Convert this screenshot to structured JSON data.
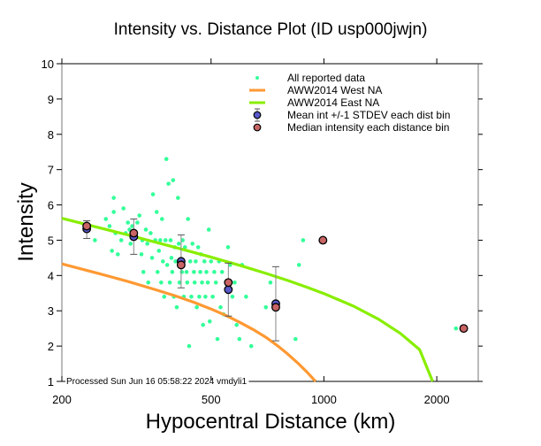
{
  "chart_data": {
    "type": "scatter",
    "title": "Intensity vs. Distance Plot (ID usp000jwjn)",
    "xlabel": "Hypocentral Distance (km)",
    "ylabel": "Intensity",
    "xscale": "log",
    "xlim": [
      200,
      2580
    ],
    "ylim": [
      1,
      10
    ],
    "xticks": [
      200,
      500,
      1000,
      2000
    ],
    "xtick_labels": [
      "200",
      "500",
      "1000",
      "2000"
    ],
    "yticks": [
      1,
      2,
      3,
      4,
      5,
      6,
      7,
      8,
      9,
      10
    ],
    "ytick_labels": [
      "1",
      "2",
      "3",
      "4",
      "5",
      "6",
      "7",
      "8",
      "9",
      "10"
    ],
    "grid": false,
    "legend_position": "top-right",
    "footnote": "Processed Sun Jun 16 05:58:22 2024 vmdyli1",
    "colors": {
      "reported": "#33ff99",
      "west": "#ff9933",
      "east": "#88ee00",
      "mean": "#5a5acb",
      "median": "#c86464",
      "errorbar": "#888888"
    },
    "legend": [
      {
        "key": "reported",
        "label": "All reported data"
      },
      {
        "key": "west",
        "label": "AWW2014 West NA"
      },
      {
        "key": "east",
        "label": "AWW2014 East NA"
      },
      {
        "key": "mean",
        "label": "Mean int +/-1 STDEV each dist bin"
      },
      {
        "key": "median",
        "label": "Median intensity each distance bin"
      }
    ],
    "series": [
      {
        "name": "AWW2014 West NA",
        "kind": "line",
        "x": [
          200,
          250,
          300,
          350,
          400,
          450,
          500,
          550,
          600,
          650,
          700,
          750,
          800,
          850,
          900,
          950
        ],
        "y": [
          4.33,
          4.06,
          3.83,
          3.62,
          3.43,
          3.24,
          3.05,
          2.86,
          2.66,
          2.46,
          2.25,
          2.02,
          1.78,
          1.53,
          1.27,
          1.0
        ]
      },
      {
        "name": "AWW2014 East NA",
        "kind": "line",
        "x": [
          200,
          300,
          400,
          500,
          600,
          700,
          800,
          900,
          1000,
          1200,
          1400,
          1600,
          1800,
          1950
        ],
        "y": [
          5.62,
          5.15,
          4.8,
          4.52,
          4.28,
          4.06,
          3.86,
          3.67,
          3.49,
          3.13,
          2.76,
          2.36,
          1.9,
          1.0
        ]
      },
      {
        "name": "Mean int +/-1 STDEV each dist bin",
        "kind": "errorbar",
        "x": [
          233,
          311,
          416,
          556,
          744
        ],
        "y": [
          5.32,
          5.1,
          4.4,
          3.6,
          3.2
        ],
        "ylow": [
          5.05,
          4.6,
          3.65,
          2.85,
          2.15
        ],
        "yhigh": [
          5.55,
          5.6,
          5.15,
          4.35,
          4.25
        ]
      },
      {
        "name": "Median intensity each distance bin",
        "kind": "points",
        "x": [
          233,
          311,
          416,
          556,
          744,
          994,
          2360
        ],
        "y": [
          5.4,
          5.2,
          4.3,
          3.8,
          3.1,
          5.0,
          2.5
        ]
      },
      {
        "name": "All reported data",
        "kind": "points",
        "points": [
          [
            245,
            5.0
          ],
          [
            262,
            5.6
          ],
          [
            268,
            5.4
          ],
          [
            272,
            4.7
          ],
          [
            275,
            5.8
          ],
          [
            275,
            6.2
          ],
          [
            278,
            5.2
          ],
          [
            282,
            4.6
          ],
          [
            288,
            5.0
          ],
          [
            292,
            5.9
          ],
          [
            296,
            5.2
          ],
          [
            300,
            5.5
          ],
          [
            303,
            5.3
          ],
          [
            305,
            4.9
          ],
          [
            308,
            5.4
          ],
          [
            312,
            5.2
          ],
          [
            318,
            5.5
          ],
          [
            322,
            5.7
          ],
          [
            326,
            4.6
          ],
          [
            328,
            5.0
          ],
          [
            330,
            4.1
          ],
          [
            335,
            5.3
          ],
          [
            338,
            4.9
          ],
          [
            340,
            3.8
          ],
          [
            345,
            5.2
          ],
          [
            348,
            4.5
          ],
          [
            350,
            6.3
          ],
          [
            355,
            5.0
          ],
          [
            358,
            5.8
          ],
          [
            360,
            4.1
          ],
          [
            363,
            4.7
          ],
          [
            366,
            5.0
          ],
          [
            368,
            3.8
          ],
          [
            370,
            5.6
          ],
          [
            372,
            4.4
          ],
          [
            375,
            3.4
          ],
          [
            378,
            5.0
          ],
          [
            380,
            7.3
          ],
          [
            382,
            4.3
          ],
          [
            385,
            6.6
          ],
          [
            388,
            3.8
          ],
          [
            390,
            5.0
          ],
          [
            392,
            4.5
          ],
          [
            394,
            4.1
          ],
          [
            396,
            6.7
          ],
          [
            398,
            3.4
          ],
          [
            400,
            4.8
          ],
          [
            402,
            4.4
          ],
          [
            405,
            3.1
          ],
          [
            408,
            6.2
          ],
          [
            410,
            4.9
          ],
          [
            412,
            3.8
          ],
          [
            414,
            4.4
          ],
          [
            418,
            4.1
          ],
          [
            420,
            5.0
          ],
          [
            423,
            3.4
          ],
          [
            426,
            4.8
          ],
          [
            430,
            4.1
          ],
          [
            432,
            3.8
          ],
          [
            434,
            5.6
          ],
          [
            437,
            2.0
          ],
          [
            440,
            4.4
          ],
          [
            443,
            3.4
          ],
          [
            446,
            4.9
          ],
          [
            450,
            4.1
          ],
          [
            452,
            3.8
          ],
          [
            455,
            4.4
          ],
          [
            458,
            3.1
          ],
          [
            462,
            4.8
          ],
          [
            465,
            3.4
          ],
          [
            468,
            4.1
          ],
          [
            470,
            4.6
          ],
          [
            473,
            3.8
          ],
          [
            476,
            2.6
          ],
          [
            480,
            4.4
          ],
          [
            483,
            3.4
          ],
          [
            486,
            4.1
          ],
          [
            490,
            3.8
          ],
          [
            493,
            5.3
          ],
          [
            496,
            2.7
          ],
          [
            500,
            4.4
          ],
          [
            505,
            3.4
          ],
          [
            510,
            4.1
          ],
          [
            515,
            3.8
          ],
          [
            520,
            2.2
          ],
          [
            525,
            4.4
          ],
          [
            530,
            3.1
          ],
          [
            535,
            4.1
          ],
          [
            540,
            2.9
          ],
          [
            548,
            3.8
          ],
          [
            555,
            4.8
          ],
          [
            562,
            4.3
          ],
          [
            570,
            3.4
          ],
          [
            578,
            3.8
          ],
          [
            585,
            2.6
          ],
          [
            595,
            2.2
          ],
          [
            605,
            4.3
          ],
          [
            620,
            3.4
          ],
          [
            640,
            2.0
          ],
          [
            700,
            3.1
          ],
          [
            720,
            3.8
          ],
          [
            840,
            2.2
          ],
          [
            858,
            4.3
          ],
          [
            880,
            5.0
          ],
          [
            2250,
            2.5
          ]
        ]
      }
    ]
  }
}
